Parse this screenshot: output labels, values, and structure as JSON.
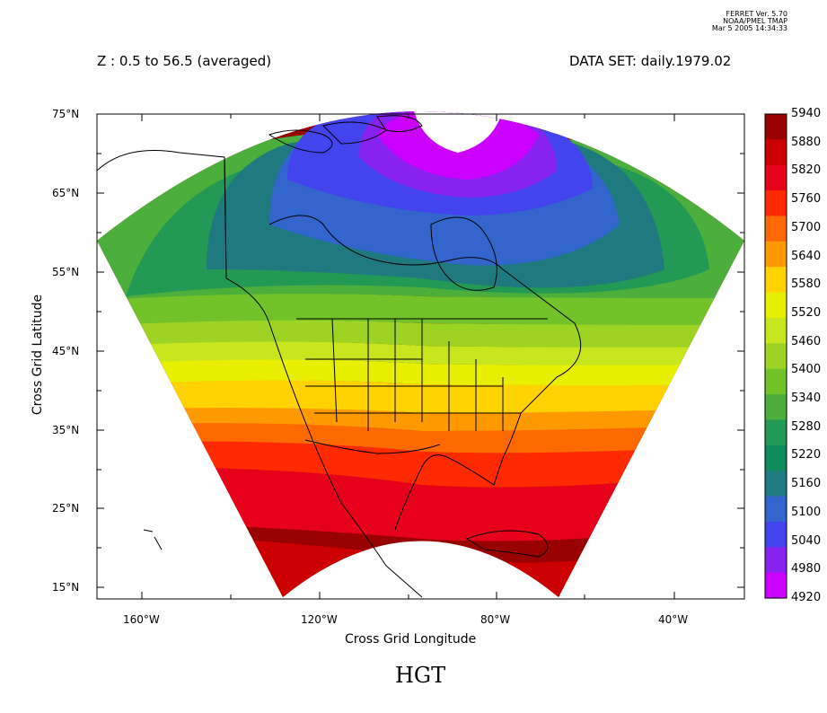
{
  "stamp": {
    "line1": "FERRET Ver. 5.70",
    "line2": "NOAA/PMEL TMAP",
    "line3": "Mar  5 2005 14:34:33"
  },
  "header": {
    "z_range": "Z : 0.5 to 56.5 (averaged)",
    "dataset": "DATA SET: daily.1979.02"
  },
  "axes": {
    "ylabel": "Cross Grid Latitude",
    "xlabel": "Cross Grid Longitude",
    "lat_ticks": [
      "75°N",
      "65°N",
      "55°N",
      "45°N",
      "35°N",
      "25°N",
      "15°N"
    ],
    "lon_ticks": [
      "160°W",
      "120°W",
      "80°W",
      "40°W"
    ]
  },
  "colorbar": {
    "levels": [
      "5940",
      "5880",
      "5820",
      "5760",
      "5700",
      "5640",
      "5580",
      "5520",
      "5460",
      "5400",
      "5340",
      "5280",
      "5220",
      "5160",
      "5100",
      "5040",
      "4980",
      "4920"
    ],
    "colors": [
      "#990000",
      "#cc0000",
      "#e6001a",
      "#ff2a00",
      "#ff6a00",
      "#ff9900",
      "#ffd200",
      "#e8f000",
      "#c8e61e",
      "#9dd322",
      "#72c22a",
      "#4caf3c",
      "#229954",
      "#0f8a5a",
      "#1f7a7f",
      "#3366cc",
      "#4444ee",
      "#8822ee",
      "#cc00ff"
    ]
  },
  "title": "HGT"
}
